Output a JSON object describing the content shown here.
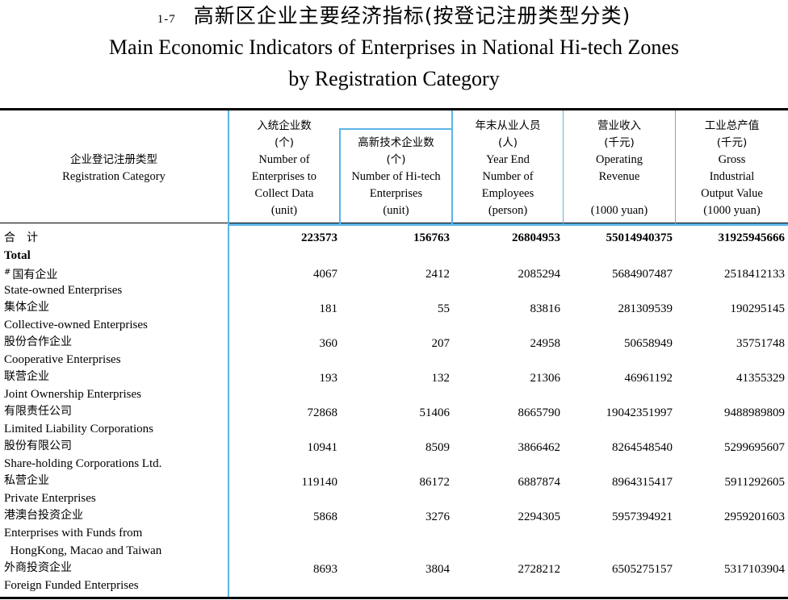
{
  "title": {
    "number": "1-7",
    "chinese": "高新区企业主要经济指标(按登记注册类型分类)",
    "english_line1": "Main Economic Indicators of Enterprises in National Hi-tech Zones",
    "english_line2": "by Registration Category"
  },
  "header": {
    "category": {
      "zh": "企业登记注册类型",
      "en": "Registration Category"
    },
    "enterprises": {
      "zh": "入统企业数",
      "unit_zh": "(个)",
      "en1": "Number of",
      "en2": "Enterprises to",
      "en3": "Collect Data",
      "unit": "(unit)"
    },
    "hitech": {
      "zh": "高新技术企业数",
      "unit_zh": "(个)",
      "en1": "Number of Hi-tech",
      "en2": "Enterprises",
      "unit": "(unit)"
    },
    "employees": {
      "zh": "年末从业人员",
      "unit_zh": "(人)",
      "en1": "Year End",
      "en2": "Number of",
      "en3": "Employees",
      "unit": "(person)"
    },
    "revenue": {
      "zh": "营业收入",
      "unit_zh": "(千元)",
      "en1": "Operating",
      "en2": "Revenue",
      "unit": "(1000 yuan)"
    },
    "output": {
      "zh": "工业总产值",
      "unit_zh": "(千元)",
      "en1": "Gross",
      "en2": "Industrial",
      "en3": "Output Value",
      "unit": "(1000 yuan)"
    }
  },
  "rows": [
    {
      "zh": "合　计",
      "en": "Total",
      "enterprises": "223573",
      "hitech": "156763",
      "employees": "26804953",
      "revenue": "55014940375",
      "output": "31925945666"
    },
    {
      "mark": "#",
      "zh": "国有企业",
      "en": "State-owned Enterprises",
      "enterprises": "4067",
      "hitech": "2412",
      "employees": "2085294",
      "revenue": "5684907487",
      "output": "2518412133"
    },
    {
      "zh": "集体企业",
      "en": "Collective-owned Enterprises",
      "enterprises": "181",
      "hitech": "55",
      "employees": "83816",
      "revenue": "281309539",
      "output": "190295145"
    },
    {
      "zh": "股份合作企业",
      "en": "Cooperative Enterprises",
      "enterprises": "360",
      "hitech": "207",
      "employees": "24958",
      "revenue": "50658949",
      "output": "35751748"
    },
    {
      "zh": "联营企业",
      "en": "Joint Ownership Enterprises",
      "enterprises": "193",
      "hitech": "132",
      "employees": "21306",
      "revenue": "46961192",
      "output": "41355329"
    },
    {
      "zh": "有限责任公司",
      "en": "Limited Liability Corporations",
      "enterprises": "72868",
      "hitech": "51406",
      "employees": "8665790",
      "revenue": "19042351997",
      "output": "9488989809"
    },
    {
      "zh": "股份有限公司",
      "en": "Share-holding Corporations Ltd.",
      "enterprises": "10941",
      "hitech": "8509",
      "employees": "3866462",
      "revenue": "8264548540",
      "output": "5299695607"
    },
    {
      "zh": "私营企业",
      "en": "Private Enterprises",
      "enterprises": "119140",
      "hitech": "86172",
      "employees": "6887874",
      "revenue": "8964315417",
      "output": "5911292605"
    },
    {
      "zh": "港澳台投资企业",
      "en": "Enterprises with Funds from",
      "en_line2": "  HongKong, Macao and Taiwan",
      "enterprises": "5868",
      "hitech": "3276",
      "employees": "2294305",
      "revenue": "5957394921",
      "output": "2959201603"
    },
    {
      "zh": "外商投资企业",
      "en": "Foreign Funded Enterprises",
      "enterprises": "8693",
      "hitech": "3804",
      "employees": "2728212",
      "revenue": "6505275157",
      "output": "5317103904"
    }
  ]
}
